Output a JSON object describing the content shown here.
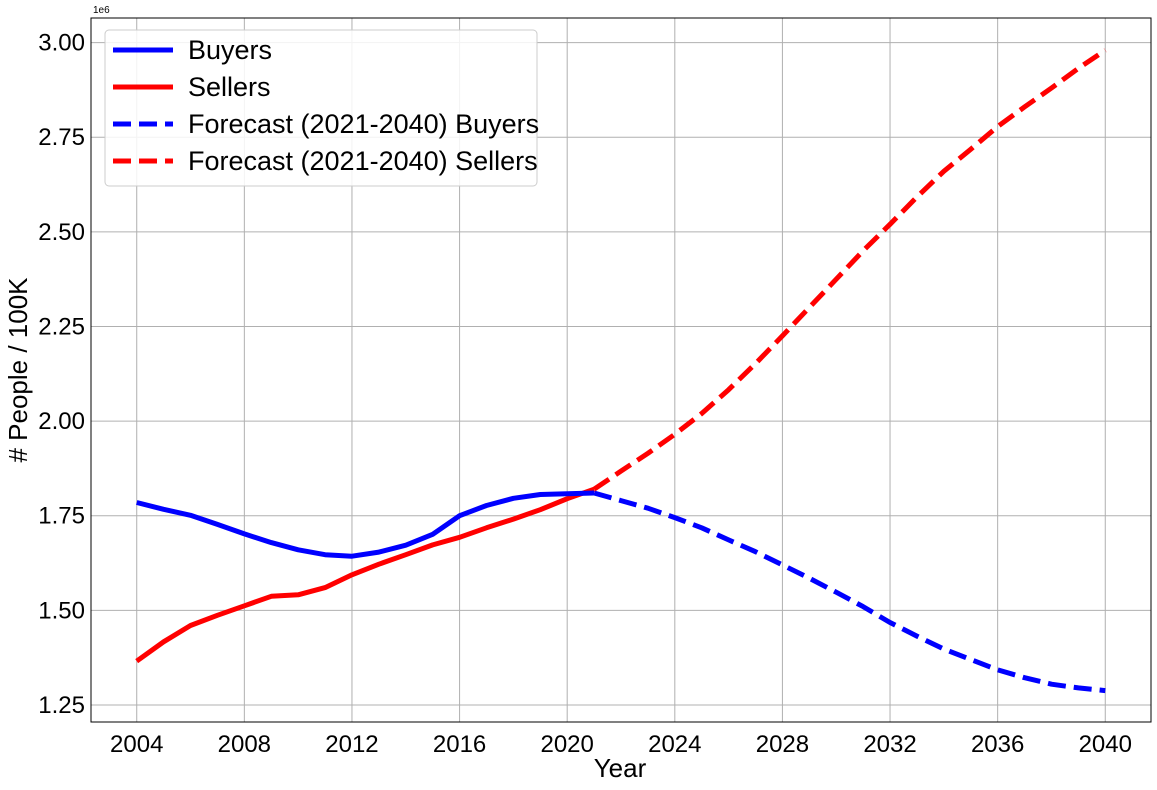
{
  "chart_data": {
    "type": "line",
    "title": "",
    "xlabel": "Year",
    "ylabel": "# People / 100K",
    "y_offset_label": "1e6",
    "xlim": [
      2002.3,
      2041.7
    ],
    "ylim": [
      1.205,
      3.065
    ],
    "xticks": [
      2004,
      2008,
      2012,
      2016,
      2020,
      2024,
      2028,
      2032,
      2036,
      2040
    ],
    "yticks": [
      1.25,
      1.5,
      1.75,
      2.0,
      2.25,
      2.5,
      2.75,
      3.0
    ],
    "ytick_labels": [
      "1.25",
      "1.50",
      "1.75",
      "2.00",
      "2.25",
      "2.50",
      "2.75",
      "3.00"
    ],
    "grid": true,
    "legend_position": "top-left",
    "series": [
      {
        "name": "Buyers",
        "color": "#0000ff",
        "style": "solid",
        "x": [
          2004,
          2005,
          2006,
          2007,
          2008,
          2009,
          2010,
          2011,
          2012,
          2013,
          2014,
          2015,
          2016,
          2017,
          2018,
          2019,
          2020,
          2021
        ],
        "y": [
          1.785,
          1.767,
          1.751,
          1.727,
          1.702,
          1.679,
          1.66,
          1.647,
          1.643,
          1.654,
          1.672,
          1.701,
          1.75,
          1.777,
          1.796,
          1.806,
          1.808,
          1.81
        ]
      },
      {
        "name": "Sellers",
        "color": "#ff0000",
        "style": "solid",
        "x": [
          2004,
          2005,
          2006,
          2007,
          2008,
          2009,
          2010,
          2011,
          2012,
          2013,
          2014,
          2015,
          2016,
          2017,
          2018,
          2019,
          2020,
          2021
        ],
        "y": [
          1.366,
          1.417,
          1.46,
          1.487,
          1.512,
          1.537,
          1.541,
          1.56,
          1.594,
          1.622,
          1.647,
          1.673,
          1.693,
          1.718,
          1.741,
          1.766,
          1.795,
          1.82
        ]
      },
      {
        "name": "Forecast (2021-2040) Buyers",
        "color": "#0000ff",
        "style": "dashed",
        "x": [
          2021,
          2022,
          2023,
          2024,
          2025,
          2026,
          2027,
          2028,
          2029,
          2030,
          2031,
          2032,
          2033,
          2034,
          2035,
          2036,
          2037,
          2038,
          2039,
          2040
        ],
        "y": [
          1.81,
          1.79,
          1.77,
          1.745,
          1.718,
          1.686,
          1.655,
          1.62,
          1.585,
          1.548,
          1.51,
          1.468,
          1.432,
          1.398,
          1.37,
          1.343,
          1.322,
          1.305,
          1.295,
          1.288
        ]
      },
      {
        "name": "Forecast (2021-2040) Sellers",
        "color": "#ff0000",
        "style": "dashed",
        "x": [
          2021,
          2022,
          2023,
          2024,
          2025,
          2026,
          2027,
          2028,
          2029,
          2030,
          2031,
          2032,
          2033,
          2034,
          2035,
          2036,
          2037,
          2038,
          2039,
          2040
        ],
        "y": [
          1.82,
          1.868,
          1.915,
          1.965,
          2.02,
          2.083,
          2.152,
          2.225,
          2.3,
          2.375,
          2.45,
          2.52,
          2.592,
          2.66,
          2.718,
          2.778,
          2.83,
          2.88,
          2.932,
          2.98
        ]
      }
    ]
  }
}
